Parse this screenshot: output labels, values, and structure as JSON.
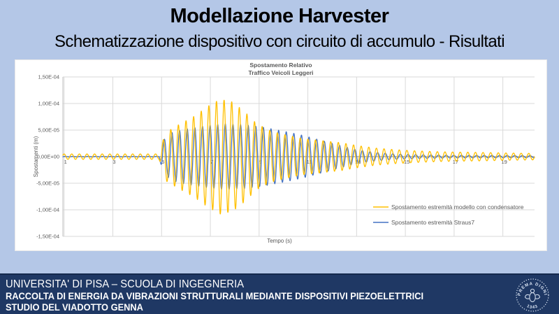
{
  "slide": {
    "title": "Modellazione Harvester",
    "subtitle": "Schematizzazione dispositivo con circuito di accumulo - Risultati"
  },
  "footer": {
    "line1": "UNIVERSITA' DI PISA – SCUOLA DI INGEGNERIA",
    "line2": "RACCOLTA DI ENERGIA DA VIBRAZIONI STRUTTURALI MEDIANTE DISPOSITIVI PIEZOELETTRICI",
    "line3": "STUDIO DEL VIADOTTO GENNA",
    "logo": {
      "motto": "IN SUPREMA DIGNITATIS",
      "year": "· 1343 ·"
    }
  },
  "colors": {
    "slide_background": "#b4c7e7",
    "panel_background": "#ffffff",
    "footer_background": "#1f3864",
    "series_yellow": "#FFC000",
    "series_blue": "#4472C4",
    "gridline": "#d9d9d9",
    "zero_axis": "#9b9b9b",
    "axis_line": "#bfbfbf",
    "chart_text": "#595959"
  },
  "chart_data": {
    "type": "line",
    "title_lines": [
      "Spostamento Relativo",
      "Traffico Veicoli Leggeri"
    ],
    "xlabel": "Tempo (s)",
    "ylabel": "Spostamenti (m)",
    "xlim": [
      0.95,
      20.3
    ],
    "ylim": [
      -0.00015,
      0.00015
    ],
    "grid": true,
    "legend_position": "inside-right",
    "x_ticks": {
      "values": [
        1,
        3,
        5,
        7,
        9,
        11,
        13,
        15,
        17,
        19
      ],
      "labels": [
        "1",
        "3",
        "5",
        "7",
        "9",
        "11",
        "13",
        "15",
        "17",
        "19"
      ]
    },
    "y_ticks": {
      "values": [
        0.00015,
        0.0001,
        5e-05,
        0,
        -5e-05,
        -0.0001,
        -0.00015
      ],
      "labels": [
        "1,50E-04",
        "1,00E-04",
        "5,00E-05",
        "0,00E+00",
        "-5,00E-05",
        "-1,00E-04",
        "-1,50E-04"
      ]
    },
    "signal_model": {
      "description": "Quiet low-amplitude signal until t=5 s, oscillatory burst peaking near t=7.5 s, slow decay to t=20 s",
      "frequency_hz": 3.2,
      "burst_start_s": 5
    },
    "series": [
      {
        "name": "Spostamento estremità modello con condensatore",
        "color": "#FFC000",
        "phase_rad": 0.3,
        "peak_amplitude_m": 0.000108,
        "envelope": [
          [
            0.95,
            5e-06
          ],
          [
            4.9,
            5e-06
          ],
          [
            5.15,
            4.5e-05
          ],
          [
            5.7,
            6e-05
          ],
          [
            6.3,
            7.5e-05
          ],
          [
            6.9,
            9.5e-05
          ],
          [
            7.4,
            0.000108
          ],
          [
            7.9,
            0.000103
          ],
          [
            8.4,
            8.5e-05
          ],
          [
            8.9,
            6.2e-05
          ],
          [
            9.5,
            4.8e-05
          ],
          [
            10.0,
            4.2e-05
          ],
          [
            10.8,
            3.4e-05
          ],
          [
            11.6,
            3e-05
          ],
          [
            12.4,
            2.6e-05
          ],
          [
            13.0,
            2.1e-05
          ],
          [
            13.8,
            1.6e-05
          ],
          [
            14.6,
            1.3e-05
          ],
          [
            15.4,
            1.1e-05
          ],
          [
            16.5,
            9e-06
          ],
          [
            18.0,
            8e-06
          ],
          [
            19.0,
            7e-06
          ],
          [
            20.3,
            6e-06
          ]
        ]
      },
      {
        "name": "Spostamento estremità Straus7",
        "color": "#4472C4",
        "phase_rad": -0.7,
        "peak_amplitude_m": 6.2e-05,
        "envelope": [
          [
            0.95,
            5e-07
          ],
          [
            4.9,
            5e-07
          ],
          [
            5.05,
            3e-05
          ],
          [
            5.4,
            4.5e-05
          ],
          [
            6.0,
            5.2e-05
          ],
          [
            6.8,
            5.8e-05
          ],
          [
            7.6,
            6.2e-05
          ],
          [
            8.4,
            6e-05
          ],
          [
            9.2,
            5.5e-05
          ],
          [
            10.0,
            4.8e-05
          ],
          [
            10.8,
            4e-05
          ],
          [
            11.6,
            3e-05
          ],
          [
            12.4,
            2e-05
          ],
          [
            13.0,
            1.3e-05
          ],
          [
            13.8,
            8e-06
          ],
          [
            14.6,
            5e-06
          ],
          [
            15.5,
            3.5e-06
          ],
          [
            17.0,
            2.5e-06
          ],
          [
            20.3,
            2e-06
          ]
        ]
      }
    ]
  }
}
